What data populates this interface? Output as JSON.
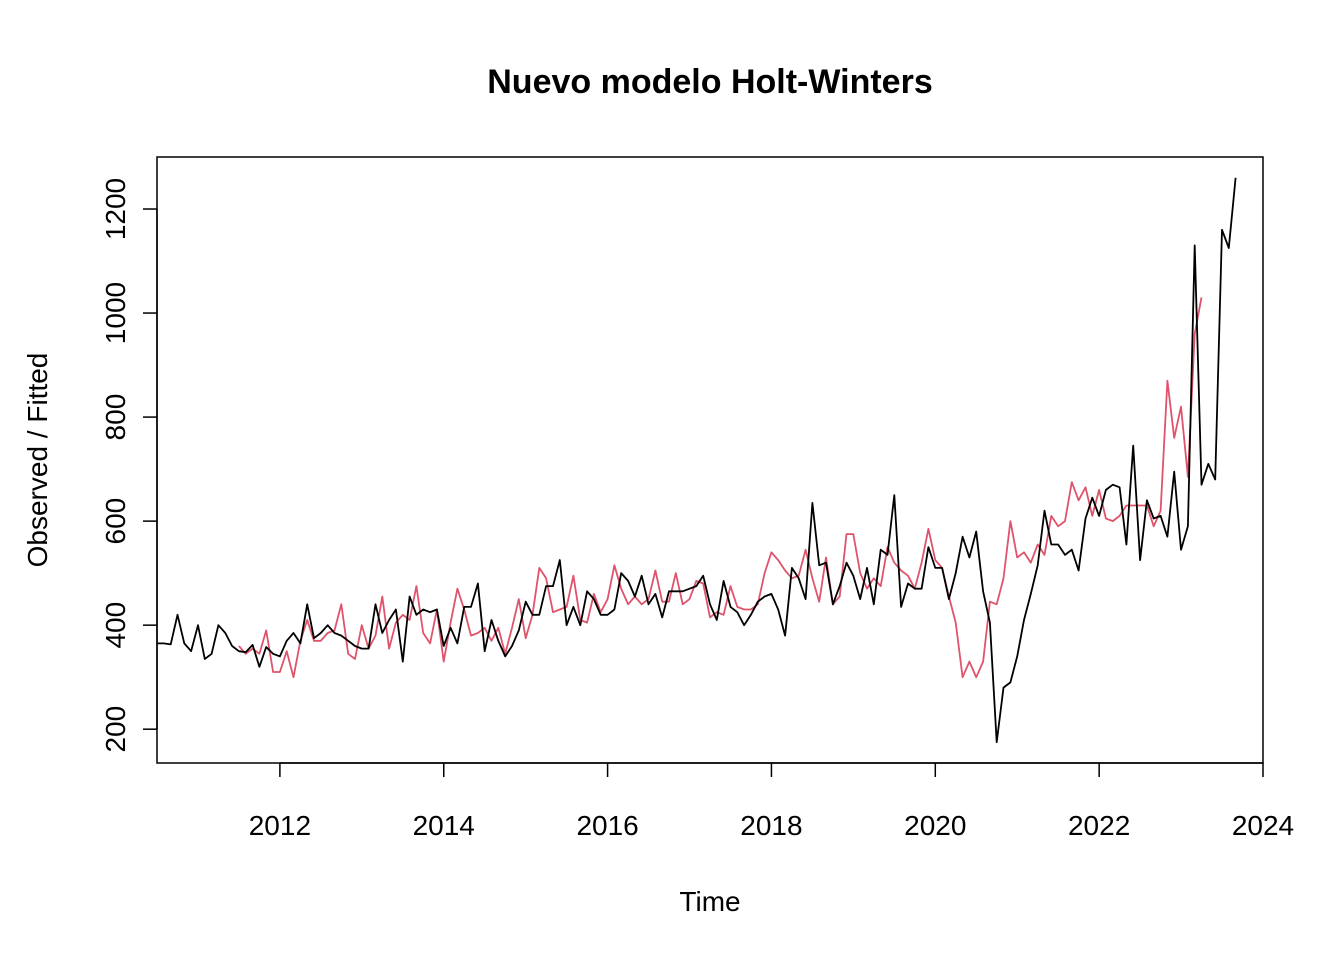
{
  "chart_data": {
    "type": "line",
    "title": "Nuevo modelo Holt-Winters",
    "xlabel": "Time",
    "ylabel": "Observed / Fitted",
    "xlim": [
      2010.5,
      2024.0
    ],
    "ylim": [
      135,
      1300
    ],
    "x_ticks": [
      2012,
      2014,
      2016,
      2018,
      2020,
      2022,
      2024
    ],
    "y_ticks": [
      200,
      400,
      600,
      800,
      1000,
      1200
    ],
    "x_start": 2010.5,
    "x_step": 0.08333,
    "grid": false,
    "series": [
      {
        "color": "#000000",
        "values": [
          365,
          365,
          363,
          420,
          365,
          350,
          400,
          335,
          345,
          400,
          385,
          360,
          350,
          348,
          362,
          320,
          358,
          345,
          340,
          370,
          385,
          365,
          440,
          375,
          385,
          400,
          385,
          380,
          370,
          360,
          355,
          355,
          440,
          385,
          410,
          430,
          330,
          455,
          420,
          430,
          425,
          430,
          360,
          395,
          365,
          435,
          435,
          480,
          350,
          410,
          370,
          340,
          360,
          390,
          445,
          420,
          420,
          475,
          475,
          525,
          400,
          435,
          400,
          465,
          450,
          420,
          420,
          430,
          500,
          485,
          455,
          495,
          440,
          460,
          415,
          465,
          465,
          465,
          470,
          475,
          495,
          440,
          410,
          485,
          435,
          425,
          400,
          420,
          445,
          455,
          460,
          430,
          380,
          510,
          490,
          450,
          635,
          515,
          520,
          440,
          475,
          520,
          495,
          450,
          510,
          440,
          545,
          535,
          650,
          435,
          480,
          470,
          470,
          550,
          510,
          510,
          450,
          500,
          570,
          530,
          580,
          465,
          405,
          175,
          280,
          290,
          340,
          410,
          460,
          515,
          620,
          555,
          555,
          535,
          545,
          505,
          605,
          645,
          610,
          660,
          670,
          665,
          555,
          745,
          525,
          640,
          605,
          610,
          570,
          695,
          545,
          590,
          1130,
          670,
          710,
          680,
          1160,
          1125,
          1260
        ]
      },
      {
        "color": "#DF536B",
        "values": [
          null,
          null,
          null,
          null,
          null,
          null,
          null,
          null,
          null,
          null,
          null,
          null,
          360,
          345,
          355,
          345,
          390,
          310,
          310,
          350,
          300,
          370,
          410,
          370,
          370,
          385,
          390,
          440,
          345,
          335,
          400,
          355,
          380,
          455,
          355,
          405,
          420,
          410,
          475,
          385,
          365,
          430,
          330,
          405,
          470,
          430,
          380,
          385,
          395,
          370,
          395,
          345,
          395,
          450,
          375,
          420,
          510,
          490,
          425,
          430,
          435,
          495,
          410,
          405,
          460,
          425,
          450,
          515,
          470,
          440,
          455,
          440,
          450,
          505,
          445,
          445,
          500,
          440,
          450,
          485,
          480,
          415,
          425,
          420,
          475,
          435,
          430,
          430,
          440,
          500,
          540,
          525,
          505,
          490,
          495,
          545,
          490,
          445,
          530,
          440,
          455,
          575,
          575,
          500,
          470,
          490,
          475,
          550,
          520,
          505,
          495,
          470,
          520,
          585,
          525,
          510,
          455,
          405,
          300,
          330,
          300,
          330,
          445,
          440,
          490,
          600,
          530,
          540,
          520,
          555,
          535,
          610,
          590,
          600,
          675,
          640,
          665,
          610,
          660,
          605,
          600,
          610,
          630,
          630,
          630,
          630,
          590,
          620,
          870,
          760,
          820,
          685,
          960,
          1030
        ]
      }
    ]
  }
}
